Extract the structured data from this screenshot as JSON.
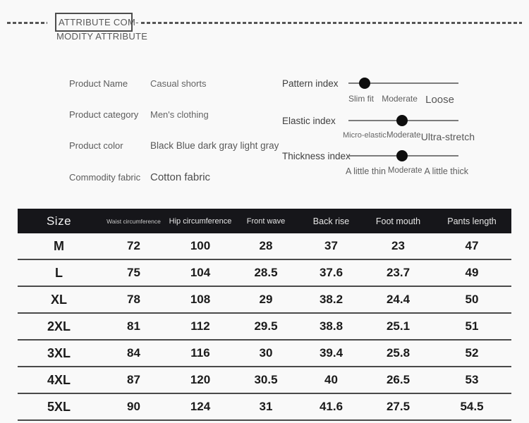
{
  "header": {
    "title_line1": "ATTRIBUTE COM-",
    "title_line2": "MODITY ATTRIBUTE"
  },
  "attributes": [
    {
      "label": "Product Name",
      "value": "Casual shorts"
    },
    {
      "label": "Product category",
      "value": "Men's clothing"
    },
    {
      "label": "Product color",
      "value": "Black Blue dark gray light gray"
    },
    {
      "label": "Commodity fabric",
      "value": "Cotton fabric"
    }
  ],
  "sliders": [
    {
      "label": "Pattern index",
      "position_pct": 15,
      "ticks": [
        "Slim fit",
        "Moderate",
        "Loose"
      ]
    },
    {
      "label": "Elastic index",
      "position_pct": 49,
      "ticks": [
        "Micro-elastic",
        "Moderate",
        "Ultra-stretch"
      ]
    },
    {
      "label": "Thickness index",
      "position_pct": 49,
      "ticks": [
        "A little thin",
        "Moderate",
        "A little thick"
      ]
    }
  ],
  "size_table": {
    "columns": [
      "Size",
      "Waist circumference",
      "Hip circumference",
      "Front wave",
      "Back rise",
      "Foot mouth",
      "Pants length"
    ],
    "rows": [
      [
        "M",
        "72",
        "100",
        "28",
        "37",
        "23",
        "47"
      ],
      [
        "L",
        "75",
        "104",
        "28.5",
        "37.6",
        "23.7",
        "49"
      ],
      [
        "XL",
        "78",
        "108",
        "29",
        "38.2",
        "24.4",
        "50"
      ],
      [
        "2XL",
        "81",
        "112",
        "29.5",
        "38.8",
        "25.1",
        "51"
      ],
      [
        "3XL",
        "84",
        "116",
        "30",
        "39.4",
        "25.8",
        "52"
      ],
      [
        "4XL",
        "87",
        "120",
        "30.5",
        "40",
        "26.5",
        "53"
      ],
      [
        "5XL",
        "90",
        "124",
        "31",
        "41.6",
        "27.5",
        "54.5"
      ]
    ]
  },
  "colors": {
    "table_header_bg": "#16161a",
    "knob": "#0e0e0e",
    "accent_text": "#585858"
  }
}
